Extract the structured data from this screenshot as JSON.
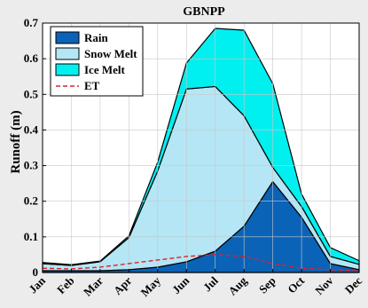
{
  "chart_data": {
    "type": "area",
    "title": "GBNPP",
    "xlabel": "",
    "ylabel": "Runoff (m)",
    "categories": [
      "Jan",
      "Feb",
      "Mar",
      "Apr",
      "May",
      "Jun",
      "Jul",
      "Aug",
      "Sep",
      "Oct",
      "Nov",
      "Dec"
    ],
    "ylim": [
      0,
      0.7
    ],
    "yticks": [
      "0",
      "0.1",
      "0.2",
      "0.3",
      "0.4",
      "0.5",
      "0.6",
      "0.7"
    ],
    "stacked": true,
    "grid": true,
    "legend_position": "top-left",
    "series": [
      {
        "name": "Rain",
        "kind": "area",
        "color": "#0a63b7",
        "values": [
          0.005,
          0.005,
          0.005,
          0.008,
          0.015,
          0.03,
          0.06,
          0.13,
          0.255,
          0.155,
          0.025,
          0.008
        ]
      },
      {
        "name": "Snow Melt",
        "kind": "area",
        "color": "#b4e6f5",
        "values": [
          0.02,
          0.015,
          0.025,
          0.09,
          0.27,
          0.485,
          0.462,
          0.31,
          0.04,
          0.03,
          0.02,
          0.015
        ]
      },
      {
        "name": "Ice Melt",
        "kind": "area",
        "color": "#00f0f0",
        "values": [
          0.003,
          0.002,
          0.002,
          0.005,
          0.025,
          0.073,
          0.163,
          0.24,
          0.235,
          0.035,
          0.025,
          0.01
        ]
      },
      {
        "name": "ET",
        "kind": "line",
        "color": "#e0202c",
        "dash": true,
        "values": [
          0.012,
          0.01,
          0.015,
          0.025,
          0.035,
          0.045,
          0.05,
          0.045,
          0.025,
          0.012,
          0.008,
          0.005
        ]
      }
    ]
  }
}
